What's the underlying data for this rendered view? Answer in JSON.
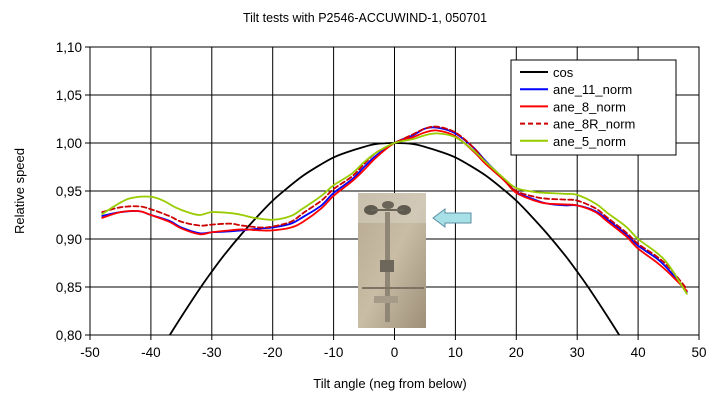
{
  "chart_data": {
    "type": "line",
    "title": "Tilt tests with P2546-ACCUWIND-1, 050701",
    "xlabel": "Tilt angle (neg from below)",
    "ylabel": "Relative speed",
    "xlim": [
      -50,
      50
    ],
    "ylim": [
      0.8,
      1.1
    ],
    "x_ticks": [
      "-50",
      "-40",
      "-30",
      "-20",
      "-10",
      "0",
      "10",
      "20",
      "30",
      "40",
      "50"
    ],
    "y_ticks": [
      "0,80",
      "0,85",
      "0,90",
      "0,95",
      "1,00",
      "1,05",
      "1,10"
    ],
    "grid": true,
    "legend_position": "top-right",
    "series": [
      {
        "name": "cos",
        "color": "#000000",
        "dash": "solid",
        "x": [
          -36.9,
          -35,
          -32,
          -30,
          -28,
          -25,
          -22,
          -20,
          -18,
          -15,
          -12,
          -10,
          -8,
          -5,
          -3,
          0,
          3,
          5,
          8,
          10,
          12,
          15,
          18,
          20,
          22,
          25,
          28,
          30,
          32,
          35,
          36.9
        ],
        "y": [
          0.8,
          0.819,
          0.848,
          0.866,
          0.883,
          0.906,
          0.927,
          0.94,
          0.951,
          0.966,
          0.978,
          0.985,
          0.99,
          0.996,
          0.999,
          1.0,
          0.999,
          0.996,
          0.99,
          0.985,
          0.978,
          0.966,
          0.951,
          0.94,
          0.927,
          0.906,
          0.883,
          0.866,
          0.848,
          0.819,
          0.8
        ]
      },
      {
        "name": "ane_11_norm",
        "color": "#0000ff",
        "dash": "solid",
        "x": [
          -48,
          -45,
          -42,
          -40,
          -37,
          -35,
          -32,
          -30,
          -27,
          -25,
          -22,
          -20,
          -17,
          -15,
          -12,
          -10,
          -7,
          -5,
          -3,
          0,
          3,
          5,
          7,
          10,
          13,
          15,
          18,
          20,
          23,
          25,
          28,
          30,
          33,
          35,
          38,
          40,
          43,
          45,
          48
        ],
        "y": [
          0.924,
          0.928,
          0.929,
          0.925,
          0.919,
          0.912,
          0.906,
          0.907,
          0.908,
          0.909,
          0.911,
          0.912,
          0.916,
          0.923,
          0.935,
          0.948,
          0.962,
          0.975,
          0.987,
          1.0,
          1.008,
          1.015,
          1.016,
          1.01,
          0.995,
          0.981,
          0.962,
          0.949,
          0.941,
          0.937,
          0.935,
          0.935,
          0.929,
          0.92,
          0.905,
          0.893,
          0.88,
          0.868,
          0.845
        ]
      },
      {
        "name": "ane_8_norm",
        "color": "#ff0000",
        "dash": "solid",
        "x": [
          -48,
          -45,
          -42,
          -40,
          -37,
          -35,
          -32,
          -30,
          -27,
          -25,
          -22,
          -20,
          -17,
          -15,
          -12,
          -10,
          -7,
          -5,
          -3,
          0,
          3,
          5,
          7,
          10,
          13,
          15,
          18,
          20,
          23,
          25,
          28,
          30,
          33,
          35,
          38,
          40,
          43,
          45,
          48
        ],
        "y": [
          0.922,
          0.928,
          0.929,
          0.925,
          0.918,
          0.911,
          0.905,
          0.907,
          0.909,
          0.91,
          0.909,
          0.909,
          0.912,
          0.918,
          0.932,
          0.945,
          0.96,
          0.972,
          0.985,
          1.0,
          1.006,
          1.011,
          1.013,
          1.007,
          0.991,
          0.978,
          0.961,
          0.948,
          0.94,
          0.937,
          0.936,
          0.935,
          0.928,
          0.918,
          0.903,
          0.89,
          0.876,
          0.865,
          0.846
        ]
      },
      {
        "name": "ane_8R_norm",
        "color": "#cc0000",
        "dash": "dashed",
        "x": [
          -48,
          -45,
          -42,
          -40,
          -37,
          -35,
          -32,
          -30,
          -27,
          -25,
          -22,
          -20,
          -17,
          -15,
          -12,
          -10,
          -7,
          -5,
          -3,
          0,
          3,
          5,
          7,
          10,
          13,
          15,
          18,
          20,
          23,
          25,
          28,
          30,
          33,
          35,
          38,
          40,
          43,
          45,
          48
        ],
        "y": [
          0.928,
          0.933,
          0.934,
          0.931,
          0.924,
          0.918,
          0.914,
          0.915,
          0.916,
          0.914,
          0.912,
          0.913,
          0.918,
          0.927,
          0.94,
          0.952,
          0.965,
          0.978,
          0.99,
          1.0,
          1.009,
          1.015,
          1.017,
          1.011,
          0.995,
          0.98,
          0.962,
          0.95,
          0.944,
          0.942,
          0.941,
          0.94,
          0.932,
          0.922,
          0.907,
          0.895,
          0.882,
          0.871,
          0.848
        ]
      },
      {
        "name": "ane_5_norm",
        "color": "#99cc00",
        "dash": "solid",
        "x": [
          -48,
          -45,
          -43,
          -40,
          -38,
          -36,
          -34,
          -32,
          -30,
          -27,
          -25,
          -23,
          -20,
          -17,
          -15,
          -12,
          -10,
          -7,
          -5,
          -3,
          0,
          3,
          5,
          7,
          10,
          13,
          15,
          18,
          20,
          23,
          25,
          28,
          30,
          33,
          35,
          38,
          40,
          43,
          45,
          48
        ],
        "y": [
          0.926,
          0.938,
          0.943,
          0.944,
          0.94,
          0.933,
          0.928,
          0.925,
          0.928,
          0.927,
          0.925,
          0.922,
          0.92,
          0.924,
          0.932,
          0.945,
          0.956,
          0.968,
          0.98,
          0.99,
          1.0,
          1.004,
          1.008,
          1.01,
          1.006,
          0.992,
          0.98,
          0.963,
          0.953,
          0.949,
          0.948,
          0.947,
          0.946,
          0.937,
          0.927,
          0.913,
          0.9,
          0.886,
          0.873,
          0.843
        ]
      }
    ]
  },
  "photo": {
    "arrow_color": "#a8e0e8"
  }
}
